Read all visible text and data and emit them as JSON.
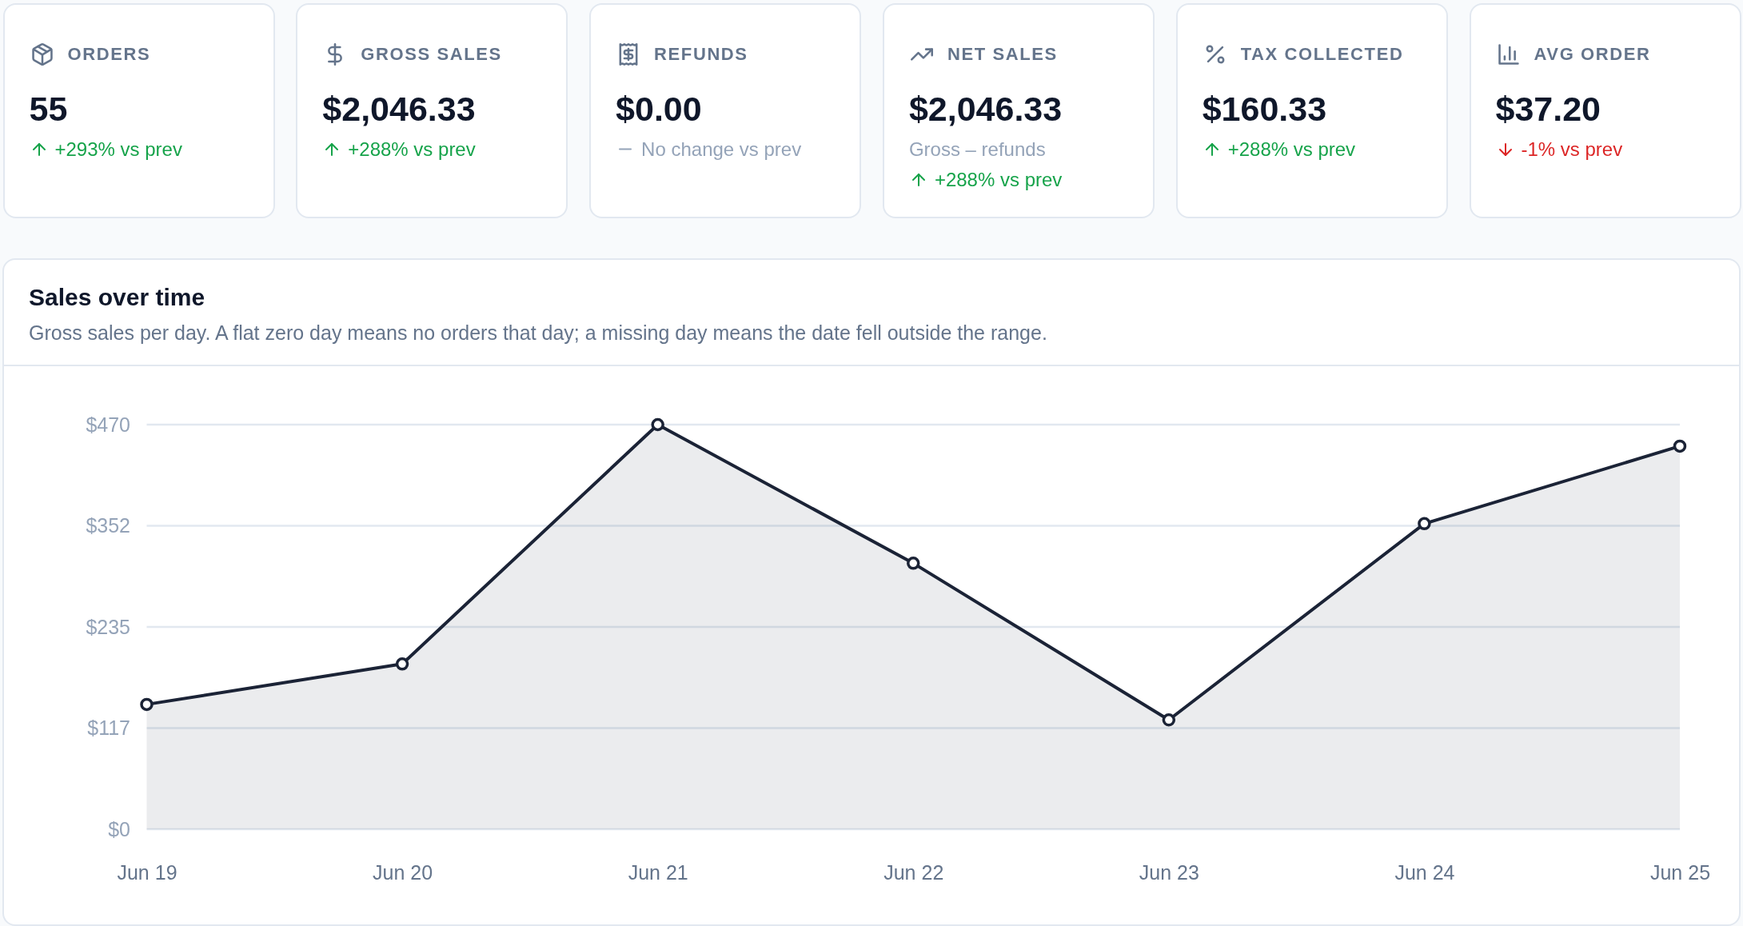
{
  "chart_data": [
    {
      "type": "other",
      "title": "ORDERS",
      "annotations": [
        "55",
        "+293% vs prev"
      ]
    },
    {
      "type": "other",
      "title": "GROSS SALES",
      "annotations": [
        "$2,046.33",
        "+288% vs prev"
      ]
    },
    {
      "type": "other",
      "title": "REFUNDS",
      "annotations": [
        "$0.00",
        "No change vs prev"
      ]
    },
    {
      "type": "other",
      "title": "NET SALES",
      "annotations": [
        "$2,046.33",
        "Gross – refunds",
        "+288% vs prev"
      ]
    },
    {
      "type": "other",
      "title": "TAX COLLECTED",
      "annotations": [
        "$160.33",
        "+288% vs prev"
      ]
    },
    {
      "type": "other",
      "title": "AVG ORDER",
      "annotations": [
        "$37.20",
        "-1% vs prev"
      ]
    },
    {
      "type": "area",
      "title": "Sales over time",
      "subtitle": "Gross sales per day. A flat zero day means no orders that day; a missing day means the date fell outside the range.",
      "categories": [
        "Jun 19",
        "Jun 20",
        "Jun 21",
        "Jun 22",
        "Jun 23",
        "Jun 24",
        "Jun 25"
      ],
      "series": [
        {
          "color": "#1b2336",
          "values": [
            145,
            192,
            470,
            309,
            127,
            355,
            445
          ]
        }
      ],
      "ylim": [
        0,
        470
      ],
      "yticks": [
        {
          "value": 0,
          "label": "$0"
        },
        {
          "value": 117.5,
          "label": "$117"
        },
        {
          "value": 235,
          "label": "$235"
        },
        {
          "value": 352.5,
          "label": "$352"
        },
        {
          "value": 470,
          "label": "$470"
        }
      ],
      "grid": "y",
      "marker": "circle"
    }
  ]
}
